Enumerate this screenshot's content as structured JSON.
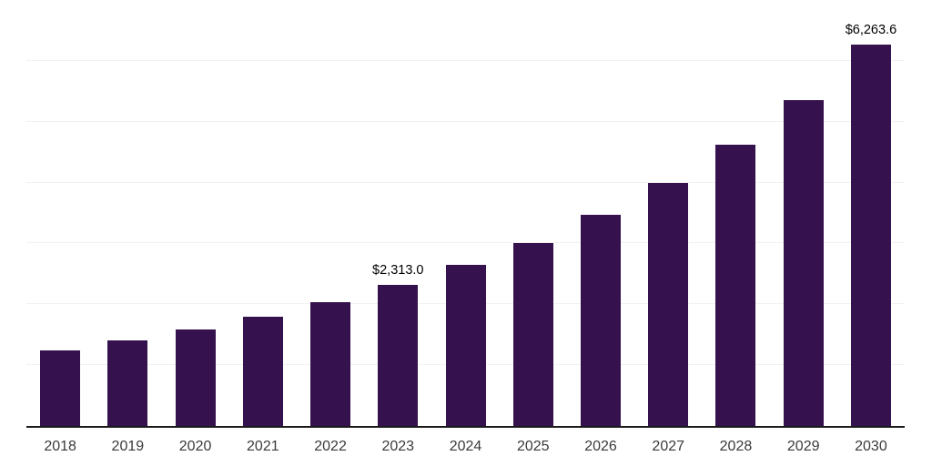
{
  "chart_data": {
    "type": "bar",
    "title": "",
    "xlabel": "",
    "ylabel": "",
    "categories": [
      "2018",
      "2019",
      "2020",
      "2021",
      "2022",
      "2023",
      "2024",
      "2025",
      "2026",
      "2027",
      "2028",
      "2029",
      "2030"
    ],
    "values": [
      1245.0,
      1402.0,
      1588.0,
      1790.0,
      2030.0,
      2313.0,
      2642.0,
      3001.0,
      3463.0,
      4000.0,
      4627.0,
      5357.0,
      6263.6
    ],
    "data_labels": {
      "2023": "$2,313.0",
      "2030": "$6,263.6"
    },
    "ylim": [
      0,
      7000
    ],
    "gridline_step": 1000,
    "grid": "horizontal-only",
    "legend": "none",
    "y_axis_labels_visible": false,
    "bar_color": "#35124e",
    "axis_line_color": "#1a1a1a",
    "gridline_color": "#f2f2f2",
    "tick_label_color": "#3a3a3a",
    "value_label_color": "#000000",
    "background_color": "#ffffff"
  }
}
